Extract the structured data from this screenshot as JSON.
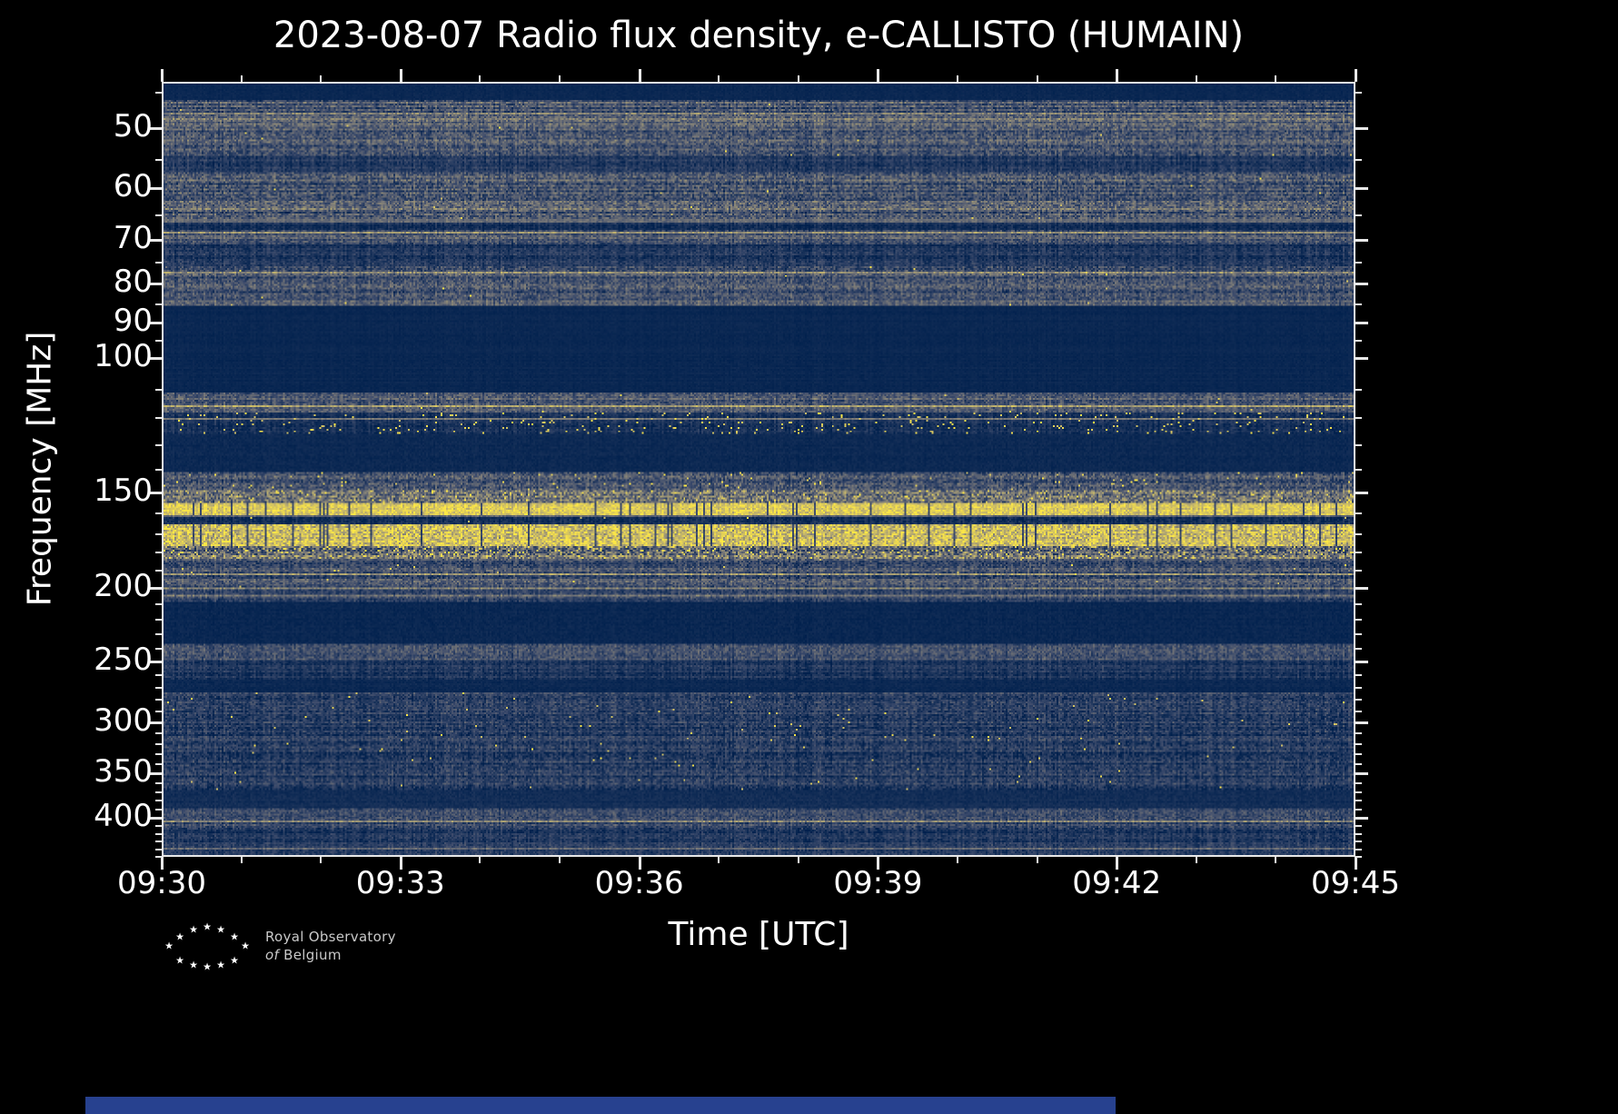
{
  "chart_data": {
    "type": "heatmap",
    "title": "2023-08-07 Radio flux density, e-CALLISTO (HUMAIN)",
    "xlabel": "Time [UTC]",
    "ylabel": "Frequency [MHz]",
    "x_ticks": [
      "09:30",
      "09:33",
      "09:36",
      "09:39",
      "09:42",
      "09:45"
    ],
    "x_tick_minutes": [
      0,
      3,
      6,
      9,
      12,
      15
    ],
    "x_minor_tick_minutes": [
      1,
      2,
      4,
      5,
      7,
      8,
      10,
      11,
      13,
      14
    ],
    "x_range": [
      "09:30",
      "09:45"
    ],
    "y_scale": "log-inverted",
    "y_ticks": [
      50,
      60,
      70,
      80,
      90,
      100,
      150,
      200,
      250,
      300,
      350,
      400
    ],
    "y_minor_ticks": [
      45,
      55,
      65,
      75,
      85,
      95,
      110,
      120,
      130,
      140,
      160,
      170,
      180,
      190,
      210,
      220,
      230,
      240,
      260,
      270,
      280,
      290,
      310,
      320,
      330,
      340,
      360,
      370,
      380,
      390,
      410,
      420,
      430,
      440,
      450
    ],
    "y_range_mhz": [
      43.5,
      450
    ],
    "grid": false,
    "legend": "none",
    "colormap": "cividis",
    "colormap_stops": [
      [
        0.0,
        "#00204d"
      ],
      [
        0.25,
        "#3b4a6b"
      ],
      [
        0.5,
        "#7c7b78"
      ],
      [
        0.75,
        "#bcaf6f"
      ],
      [
        1.0,
        "#ffe945"
      ]
    ],
    "bands": [
      {
        "f0": 43.5,
        "f1": 45.6,
        "style": "quiet",
        "base": 0.04,
        "noise": 0.02,
        "row": 0.01,
        "burst": 0,
        "desc": "quiet top edge"
      },
      {
        "f0": 45.6,
        "f1": 54.2,
        "style": "noise",
        "base": 0.3,
        "noise": 0.16,
        "row": 0.12,
        "burst": 0.001,
        "desc": "broadband RFI 46-54 MHz"
      },
      {
        "f0": 54.2,
        "f1": 57.0,
        "style": "noise",
        "base": 0.14,
        "noise": 0.09,
        "row": 0.06,
        "burst": 0,
        "desc": "weak noise"
      },
      {
        "f0": 57.0,
        "f1": 65.6,
        "style": "noise",
        "base": 0.3,
        "noise": 0.18,
        "row": 0.12,
        "burst": 0.001,
        "desc": "broadband RFI 57-66 MHz"
      },
      {
        "f0": 65.6,
        "f1": 67.8,
        "style": "noise",
        "base": 0.1,
        "noise": 0.07,
        "row": 0.05,
        "burst": 0,
        "desc": "dim gap"
      },
      {
        "f0": 67.8,
        "f1": 70.8,
        "style": "noise",
        "base": 0.26,
        "noise": 0.14,
        "row": 0.1,
        "burst": 0,
        "desc": "RFI near 70 MHz"
      },
      {
        "f0": 70.8,
        "f1": 75.6,
        "style": "noise",
        "base": 0.13,
        "noise": 0.09,
        "row": 0.06,
        "burst": 0,
        "desc": "weak noise"
      },
      {
        "f0": 75.6,
        "f1": 82.1,
        "style": "noise",
        "base": 0.28,
        "noise": 0.16,
        "row": 0.1,
        "burst": 0.001,
        "desc": "RFI near 80 MHz"
      },
      {
        "f0": 82.1,
        "f1": 85.3,
        "style": "noise",
        "base": 0.34,
        "noise": 0.14,
        "row": 0.08,
        "burst": 0.001,
        "desc": "bright narrow band 83 MHz"
      },
      {
        "f0": 85.3,
        "f1": 110.9,
        "style": "quiet",
        "base": 0.04,
        "noise": 0.02,
        "row": 0.01,
        "burst": 0,
        "desc": "quiet zone 85-110 MHz"
      },
      {
        "f0": 110.9,
        "f1": 117.8,
        "style": "noise",
        "base": 0.33,
        "noise": 0.14,
        "row": 0.08,
        "burst": 0.002,
        "desc": "band near 115 MHz"
      },
      {
        "f0": 117.8,
        "f1": 125.5,
        "style": "burst",
        "base": 0.1,
        "noise": 0.07,
        "row": 0.04,
        "burst": 0.04,
        "desc": "sparse bright bursts (airband)"
      },
      {
        "f0": 125.5,
        "f1": 141.2,
        "style": "quiet",
        "base": 0.05,
        "noise": 0.03,
        "row": 0.01,
        "burst": 0,
        "desc": "quiet zone"
      },
      {
        "f0": 141.2,
        "f1": 149.1,
        "style": "noise",
        "base": 0.3,
        "noise": 0.17,
        "row": 0.1,
        "burst": 0.012,
        "desc": "noisy band with bursts ~145 MHz"
      },
      {
        "f0": 149.1,
        "f1": 155.0,
        "style": "noise",
        "base": 0.45,
        "noise": 0.25,
        "row": 0.1,
        "burst": 0.05,
        "desc": "strong mixed band ~152 MHz"
      },
      {
        "f0": 155.0,
        "f1": 161.0,
        "style": "bright",
        "base": 0.85,
        "noise": 0.13,
        "row": 0.05,
        "burst": 0.1,
        "desc": "continuous bright yellow line ~157 MHz"
      },
      {
        "f0": 161.0,
        "f1": 165.4,
        "style": "noise",
        "base": 0.1,
        "noise": 0.08,
        "row": 0.04,
        "burst": 0.004,
        "desc": "dark gap"
      },
      {
        "f0": 165.4,
        "f1": 176.7,
        "style": "bright",
        "base": 0.78,
        "noise": 0.22,
        "row": 0.08,
        "burst": 0.15,
        "desc": "strong bright RFI 165-177 MHz"
      },
      {
        "f0": 176.7,
        "f1": 183.6,
        "style": "burst",
        "base": 0.42,
        "noise": 0.28,
        "row": 0.12,
        "burst": 0.08,
        "desc": "speckled yellow band ~180 MHz"
      },
      {
        "f0": 183.6,
        "f1": 201.6,
        "style": "noise",
        "base": 0.28,
        "noise": 0.15,
        "row": 0.1,
        "burst": 0.002,
        "desc": "gray noise band 185-200 MHz"
      },
      {
        "f0": 201.6,
        "f1": 209.5,
        "style": "noise",
        "base": 0.22,
        "noise": 0.12,
        "row": 0.08,
        "burst": 0,
        "desc": "dimmer noise ~205 MHz"
      },
      {
        "f0": 209.5,
        "f1": 237.6,
        "style": "quiet",
        "base": 0.04,
        "noise": 0.03,
        "row": 0.01,
        "burst": 0,
        "desc": "quiet zone 210-238 MHz"
      },
      {
        "f0": 237.6,
        "f1": 249.6,
        "style": "noise",
        "base": 0.26,
        "noise": 0.13,
        "row": 0.08,
        "burst": 0,
        "desc": "band near 245 MHz"
      },
      {
        "f0": 249.6,
        "f1": 265.0,
        "style": "noise",
        "base": 0.12,
        "noise": 0.08,
        "row": 0.05,
        "burst": 0,
        "desc": "faint noise"
      },
      {
        "f0": 265.0,
        "f1": 275.4,
        "style": "quiet",
        "base": 0.05,
        "noise": 0.03,
        "row": 0.01,
        "burst": 0,
        "desc": "quiet gap"
      },
      {
        "f0": 275.4,
        "f1": 306.1,
        "style": "noise",
        "base": 0.18,
        "noise": 0.12,
        "row": 0.08,
        "burst": 0.004,
        "desc": "blue noise with sparse bursts ~300 MHz"
      },
      {
        "f0": 306.1,
        "f1": 368.9,
        "style": "noise",
        "base": 0.16,
        "noise": 0.12,
        "row": 0.08,
        "burst": 0.003,
        "desc": "blue noise 306-369 MHz, occasional yellow dots"
      },
      {
        "f0": 368.9,
        "f1": 389.6,
        "style": "quiet",
        "base": 0.07,
        "noise": 0.04,
        "row": 0.02,
        "burst": 0,
        "desc": "dark band ~380 MHz"
      },
      {
        "f0": 389.6,
        "f1": 415.9,
        "style": "noise",
        "base": 0.22,
        "noise": 0.13,
        "row": 0.08,
        "burst": 0,
        "desc": "gray-blue band ~400 MHz"
      },
      {
        "f0": 415.9,
        "f1": 450.0,
        "style": "noise",
        "base": 0.14,
        "noise": 0.09,
        "row": 0.06,
        "burst": 0,
        "desc": "dim blue noise to bottom"
      }
    ]
  },
  "branding": {
    "line1": "Royal Observatory",
    "line2_prefix": "of",
    "line2_word": "Belgium"
  },
  "decor": {
    "bottom_strip_color": "#27418f"
  }
}
